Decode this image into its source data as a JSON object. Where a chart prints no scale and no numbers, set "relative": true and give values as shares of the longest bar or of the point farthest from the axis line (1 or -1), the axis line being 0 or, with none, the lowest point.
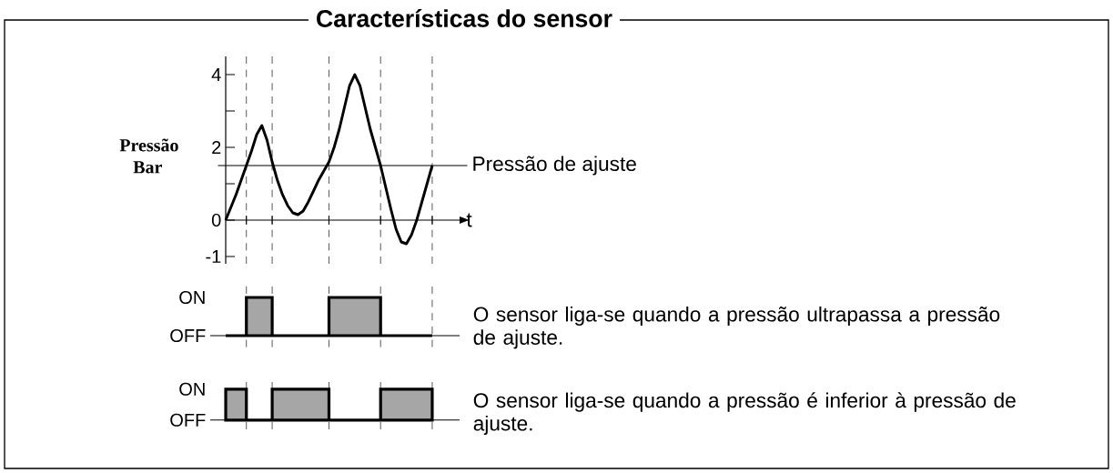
{
  "chart_data": [
    {
      "type": "line",
      "title": "Características do sensor",
      "ylabel": "Pressão Bar",
      "xlabel": "t",
      "tick_labels": "y",
      "categories": [
        null,
        null,
        null,
        null,
        null,
        null,
        null,
        null,
        null,
        null,
        null,
        null,
        null,
        null,
        null,
        null,
        null,
        null,
        null,
        null,
        null,
        null,
        null,
        null,
        null,
        null,
        null,
        null,
        null,
        null,
        null,
        null,
        null,
        null,
        null,
        null,
        null,
        null,
        null,
        null,
        null
      ],
      "values": [
        0,
        0.35,
        0.7,
        1.1,
        1.5,
        1.9,
        2.35,
        2.6,
        2.2,
        1.6,
        1.1,
        0.7,
        0.4,
        0.2,
        0.15,
        0.25,
        0.5,
        0.8,
        1.1,
        1.35,
        1.6,
        2.0,
        2.5,
        3.1,
        3.7,
        4.0,
        3.7,
        3.1,
        2.5,
        2.0,
        1.5,
        0.9,
        0.3,
        -0.25,
        -0.6,
        -0.65,
        -0.4,
        0.0,
        0.5,
        1.0,
        1.5
      ],
      "color": "#000000",
      "ylim": [
        -1.2,
        4.5
      ],
      "grid": "x",
      "yticks": [
        -1,
        0,
        {
          "value": 1,
          "label": null
        },
        2,
        {
          "value": 3,
          "label": null
        },
        4
      ],
      "ref_lines": [
        {
          "axis": "y",
          "value": 1.5,
          "label": "Pressão de ajuste"
        }
      ]
    },
    {
      "type": "area",
      "line_style": "step",
      "tick_labels": "y",
      "categories": [
        null,
        null,
        null,
        null,
        null,
        null,
        null,
        null,
        null,
        null,
        null,
        null,
        null,
        null,
        null,
        null,
        null,
        null,
        null,
        null,
        null,
        null,
        null,
        null,
        null,
        null,
        null,
        null,
        null,
        null,
        null,
        null,
        null,
        null,
        null,
        null,
        null,
        null,
        null,
        null,
        null
      ],
      "values": [
        0,
        0,
        0,
        0,
        1,
        1,
        1,
        1,
        1,
        0,
        0,
        0,
        0,
        0,
        0,
        0,
        0,
        0,
        0,
        0,
        1,
        1,
        1,
        1,
        1,
        1,
        1,
        1,
        1,
        1,
        0,
        0,
        0,
        0,
        0,
        0,
        0,
        0,
        0,
        0,
        0
      ],
      "color": "#a6a6a6",
      "relative": true,
      "grid": "x",
      "annotations": [
        "ON",
        "OFF",
        "O sensor liga-se quando a pressão ultrapassa a pressão de ajuste."
      ]
    },
    {
      "type": "area",
      "line_style": "step",
      "tick_labels": "y",
      "categories": [
        null,
        null,
        null,
        null,
        null,
        null,
        null,
        null,
        null,
        null,
        null,
        null,
        null,
        null,
        null,
        null,
        null,
        null,
        null,
        null,
        null,
        null,
        null,
        null,
        null,
        null,
        null,
        null,
        null,
        null,
        null,
        null,
        null,
        null,
        null,
        null,
        null,
        null,
        null,
        null,
        null
      ],
      "values": [
        1,
        1,
        1,
        1,
        0,
        0,
        0,
        0,
        0,
        1,
        1,
        1,
        1,
        1,
        1,
        1,
        1,
        1,
        1,
        1,
        0,
        0,
        0,
        0,
        0,
        0,
        0,
        0,
        0,
        0,
        1,
        1,
        1,
        1,
        1,
        1,
        1,
        1,
        1,
        1,
        0
      ],
      "color": "#a6a6a6",
      "relative": true,
      "grid": "x",
      "annotations": [
        "ON",
        "OFF",
        "O sensor liga-se quando a pressão é inferior à pressão de ajuste."
      ]
    }
  ]
}
